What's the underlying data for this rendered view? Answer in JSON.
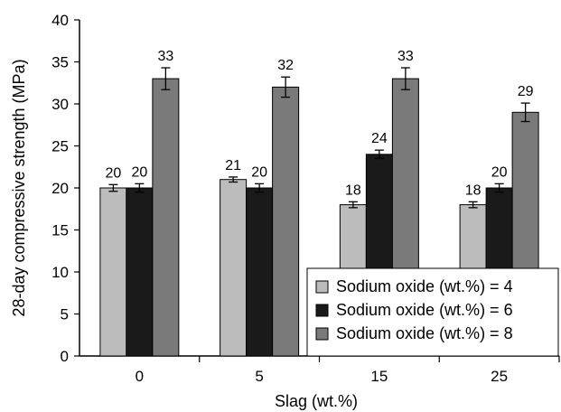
{
  "chart_data": {
    "type": "bar",
    "xlabel": "Slag (wt.%)",
    "ylabel": "28-day compressive strength (MPa)",
    "categories": [
      "0",
      "5",
      "15",
      "25"
    ],
    "ylim": [
      0,
      40
    ],
    "yticks": [
      0,
      5,
      10,
      15,
      20,
      25,
      30,
      35,
      40
    ],
    "grid": false,
    "legend_position": "bottom-right",
    "series": [
      {
        "name": "Sodium oxide (wt.%) = 4",
        "color": "#bcbcbc",
        "values": [
          20,
          21,
          18,
          18
        ],
        "errors": [
          0.4,
          0.3,
          0.35,
          0.35
        ],
        "labels": [
          "20",
          "21",
          "18",
          "18"
        ]
      },
      {
        "name": "Sodium oxide (wt.%) = 6",
        "color": "#1a1a1a",
        "values": [
          20,
          20,
          24,
          20
        ],
        "errors": [
          0.5,
          0.5,
          0.5,
          0.5
        ],
        "labels": [
          "20",
          "20",
          "24",
          "20"
        ]
      },
      {
        "name": "Sodium oxide (wt.%) = 8",
        "color": "#7a7a7a",
        "values": [
          33,
          32,
          33,
          29
        ],
        "errors": [
          1.3,
          1.2,
          1.3,
          1.1
        ],
        "labels": [
          "33",
          "32",
          "33",
          "29"
        ]
      }
    ]
  }
}
